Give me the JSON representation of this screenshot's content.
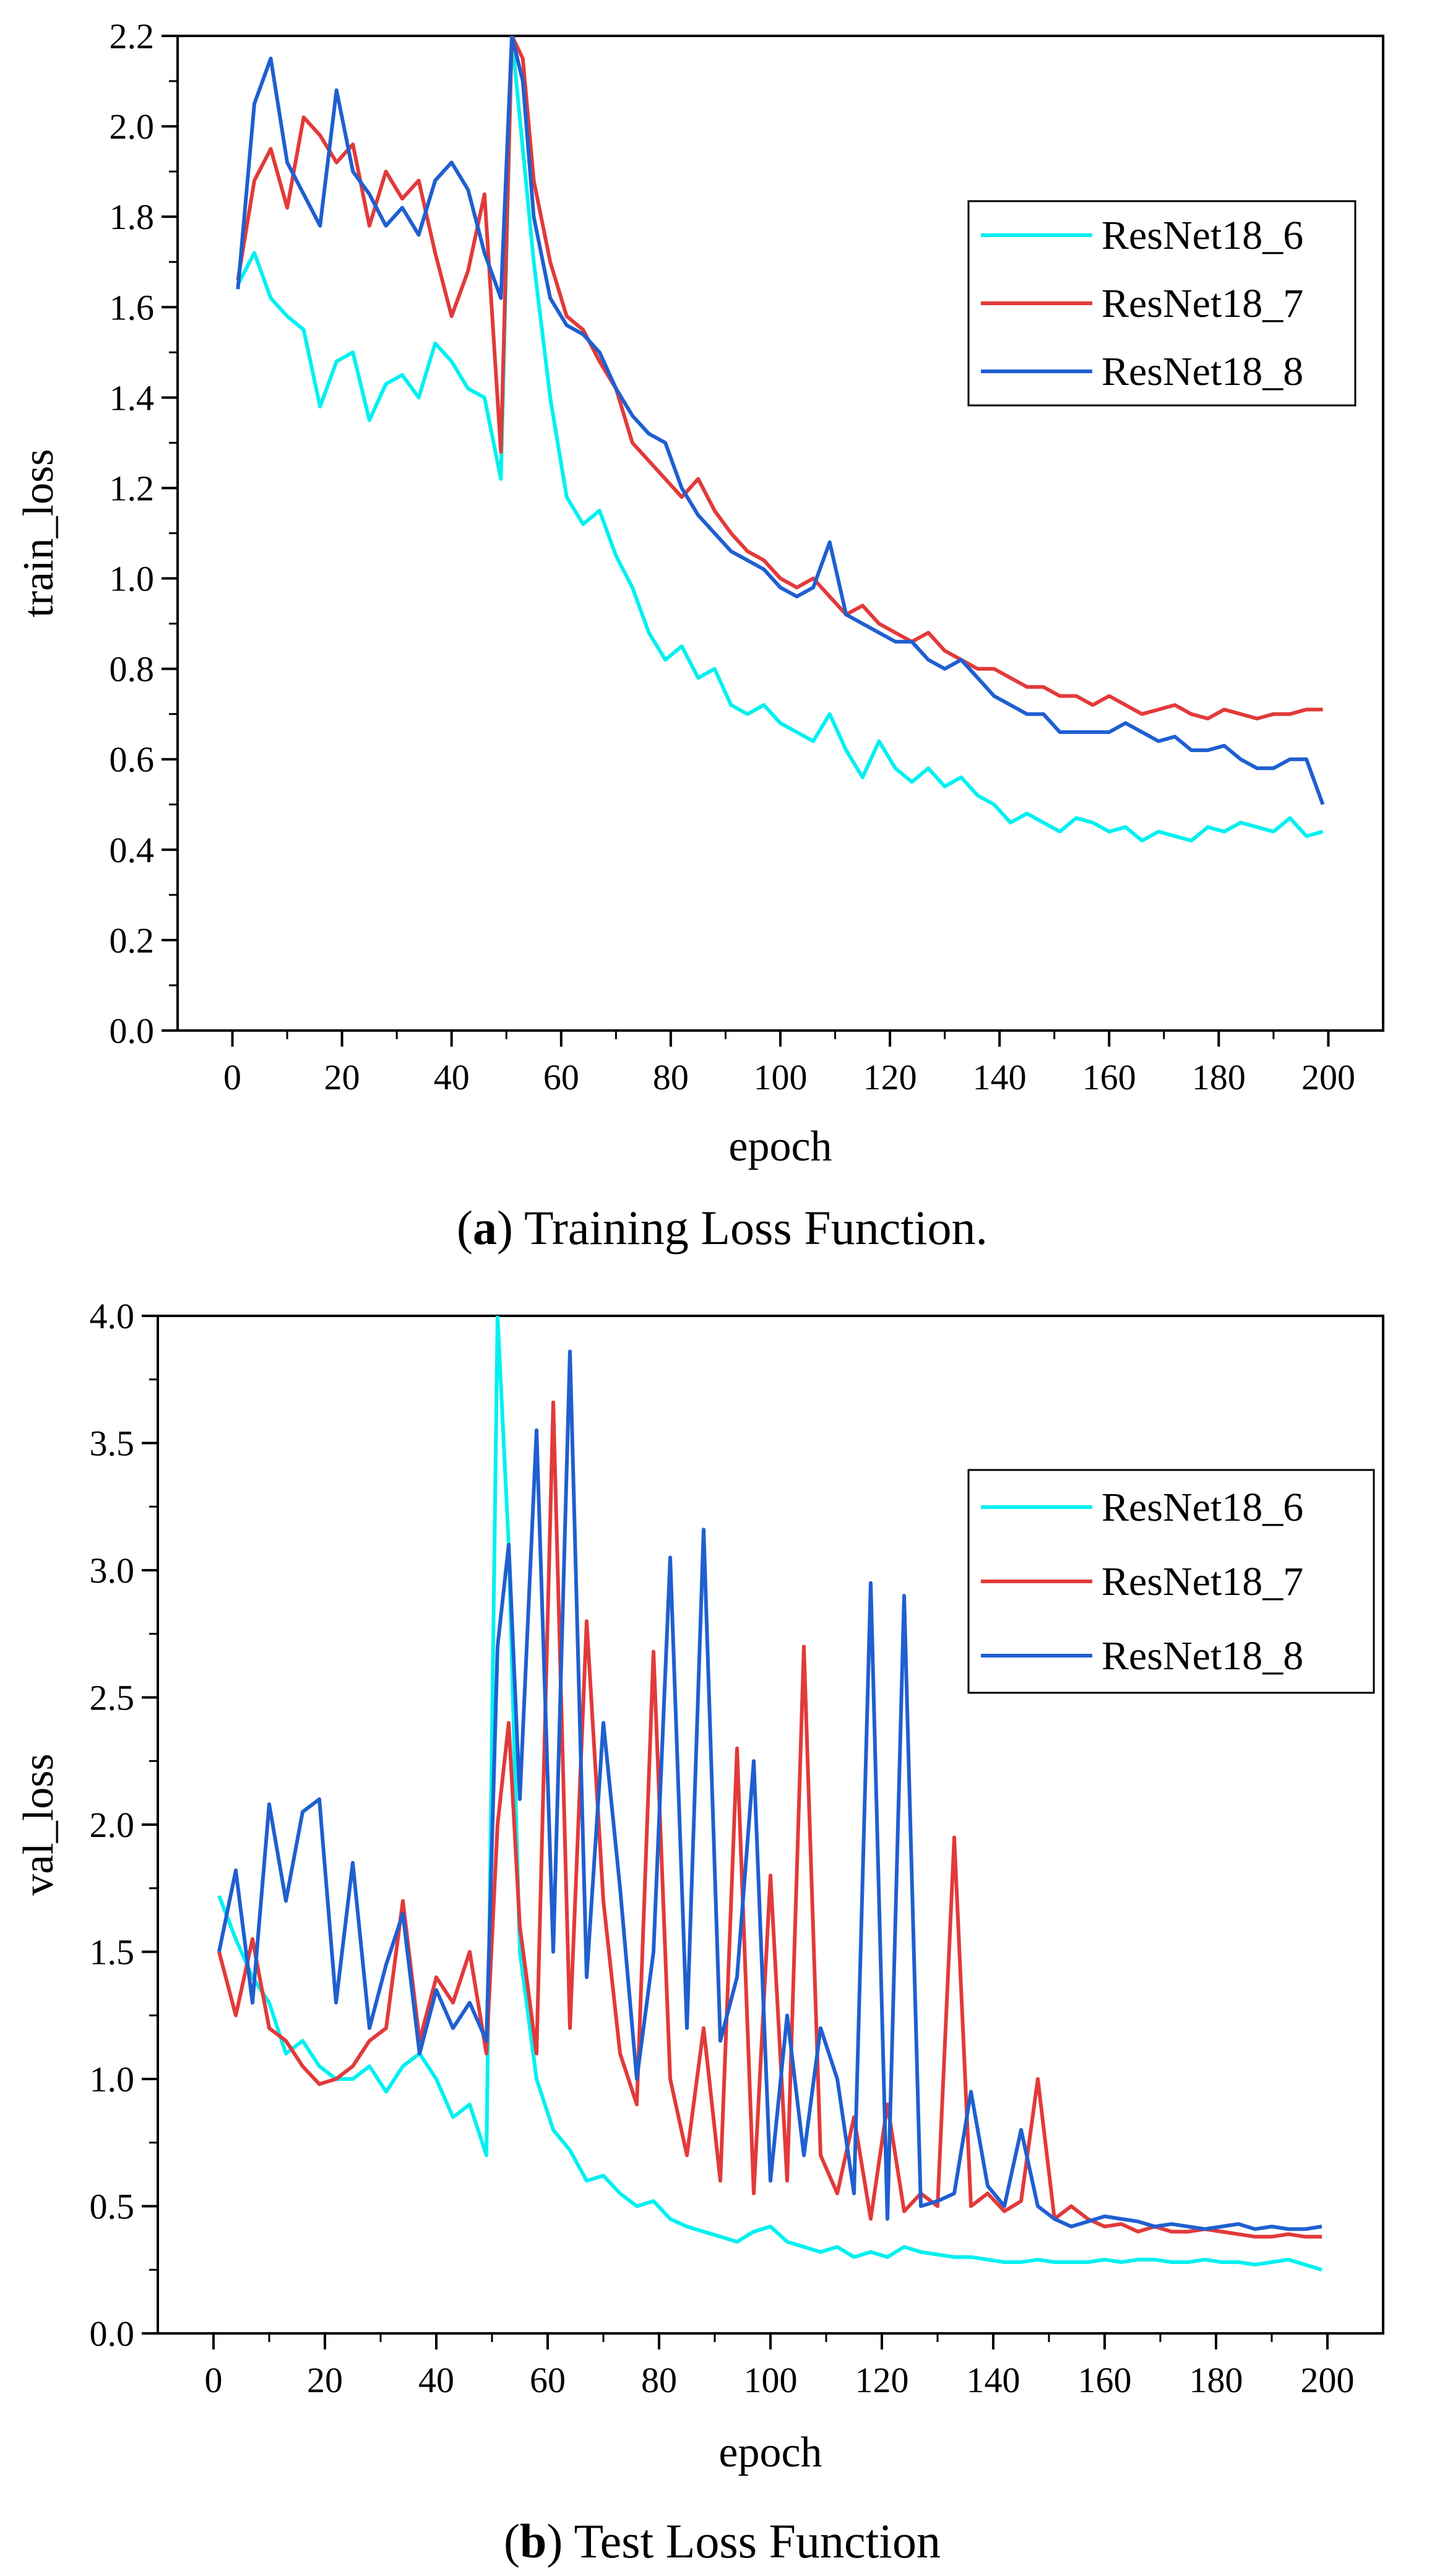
{
  "figure": {
    "panel_a_caption": {
      "open": "(",
      "letter": "a",
      "text": ") Training Loss Function."
    },
    "panel_b_caption": {
      "open": "(",
      "letter": "b",
      "text": ") Test Loss Function"
    }
  },
  "colors": {
    "ResNet18_6": "#00f0f0",
    "ResNet18_7": "#e23a3a",
    "ResNet18_8": "#1f5fd0"
  },
  "chart_data": [
    {
      "type": "line",
      "title": "",
      "xlabel": "epoch",
      "ylabel": "train_loss",
      "xlim": [
        -10,
        210
      ],
      "ylim": [
        0.0,
        2.2
      ],
      "xticks": [
        0,
        20,
        40,
        60,
        80,
        100,
        120,
        140,
        160,
        180,
        200
      ],
      "yticks": [
        0.0,
        0.2,
        0.4,
        0.6,
        0.8,
        1.0,
        1.2,
        1.4,
        1.6,
        1.8,
        2.0,
        2.2
      ],
      "ytick_labels": [
        "0.0",
        "0.2",
        "0.4",
        "0.6",
        "0.8",
        "1.0",
        "1.2",
        "1.4",
        "1.6",
        "1.8",
        "2.0",
        "2.2"
      ],
      "legend_position": "upper-right",
      "grid": false,
      "series": [
        {
          "name": "ResNet18_6",
          "x": [
            1,
            4,
            7,
            10,
            13,
            16,
            19,
            22,
            25,
            28,
            31,
            34,
            37,
            40,
            43,
            46,
            49,
            51,
            53,
            55,
            58,
            61,
            64,
            67,
            70,
            73,
            76,
            79,
            82,
            85,
            88,
            91,
            94,
            97,
            100,
            103,
            106,
            109,
            112,
            115,
            118,
            121,
            124,
            127,
            130,
            133,
            136,
            139,
            142,
            145,
            148,
            151,
            154,
            157,
            160,
            163,
            166,
            169,
            172,
            175,
            178,
            181,
            184,
            187,
            190,
            193,
            196,
            199
          ],
          "y": [
            1.65,
            1.72,
            1.62,
            1.58,
            1.55,
            1.38,
            1.48,
            1.5,
            1.35,
            1.43,
            1.45,
            1.4,
            1.52,
            1.48,
            1.42,
            1.4,
            1.22,
            2.2,
            1.95,
            1.7,
            1.4,
            1.18,
            1.12,
            1.15,
            1.05,
            0.98,
            0.88,
            0.82,
            0.85,
            0.78,
            0.8,
            0.72,
            0.7,
            0.72,
            0.68,
            0.66,
            0.64,
            0.7,
            0.62,
            0.56,
            0.64,
            0.58,
            0.55,
            0.58,
            0.54,
            0.56,
            0.52,
            0.5,
            0.46,
            0.48,
            0.46,
            0.44,
            0.47,
            0.46,
            0.44,
            0.45,
            0.42,
            0.44,
            0.43,
            0.42,
            0.45,
            0.44,
            0.46,
            0.45,
            0.44,
            0.47,
            0.43,
            0.44
          ]
        },
        {
          "name": "ResNet18_7",
          "x": [
            1,
            4,
            7,
            10,
            13,
            16,
            19,
            22,
            25,
            28,
            31,
            34,
            37,
            40,
            43,
            46,
            49,
            51,
            53,
            55,
            58,
            61,
            64,
            67,
            70,
            73,
            76,
            79,
            82,
            85,
            88,
            91,
            94,
            97,
            100,
            103,
            106,
            109,
            112,
            115,
            118,
            121,
            124,
            127,
            130,
            133,
            136,
            139,
            142,
            145,
            148,
            151,
            154,
            157,
            160,
            163,
            166,
            169,
            172,
            175,
            178,
            181,
            184,
            187,
            190,
            193,
            196,
            199
          ],
          "y": [
            1.66,
            1.88,
            1.95,
            1.82,
            2.02,
            1.98,
            1.92,
            1.96,
            1.78,
            1.9,
            1.84,
            1.88,
            1.72,
            1.58,
            1.68,
            1.85,
            1.28,
            2.2,
            2.15,
            1.88,
            1.7,
            1.58,
            1.55,
            1.48,
            1.42,
            1.3,
            1.26,
            1.22,
            1.18,
            1.22,
            1.15,
            1.1,
            1.06,
            1.04,
            1.0,
            0.98,
            1.0,
            0.96,
            0.92,
            0.94,
            0.9,
            0.88,
            0.86,
            0.88,
            0.84,
            0.82,
            0.8,
            0.8,
            0.78,
            0.76,
            0.76,
            0.74,
            0.74,
            0.72,
            0.74,
            0.72,
            0.7,
            0.71,
            0.72,
            0.7,
            0.69,
            0.71,
            0.7,
            0.69,
            0.7,
            0.7,
            0.71,
            0.71
          ]
        },
        {
          "name": "ResNet18_8",
          "x": [
            1,
            4,
            7,
            10,
            13,
            16,
            19,
            22,
            25,
            28,
            31,
            34,
            37,
            40,
            43,
            46,
            49,
            51,
            53,
            55,
            58,
            61,
            64,
            67,
            70,
            73,
            76,
            79,
            82,
            85,
            88,
            91,
            94,
            97,
            100,
            103,
            106,
            109,
            112,
            115,
            118,
            121,
            124,
            127,
            130,
            133,
            136,
            139,
            142,
            145,
            148,
            151,
            154,
            157,
            160,
            163,
            166,
            169,
            172,
            175,
            178,
            181,
            184,
            187,
            190,
            193,
            196,
            199
          ],
          "y": [
            1.64,
            2.05,
            2.15,
            1.92,
            1.85,
            1.78,
            2.08,
            1.9,
            1.85,
            1.78,
            1.82,
            1.76,
            1.88,
            1.92,
            1.86,
            1.72,
            1.62,
            2.2,
            2.1,
            1.8,
            1.62,
            1.56,
            1.54,
            1.5,
            1.42,
            1.36,
            1.32,
            1.3,
            1.2,
            1.14,
            1.1,
            1.06,
            1.04,
            1.02,
            0.98,
            0.96,
            0.98,
            1.08,
            0.92,
            0.9,
            0.88,
            0.86,
            0.86,
            0.82,
            0.8,
            0.82,
            0.78,
            0.74,
            0.72,
            0.7,
            0.7,
            0.66,
            0.66,
            0.66,
            0.66,
            0.68,
            0.66,
            0.64,
            0.65,
            0.62,
            0.62,
            0.63,
            0.6,
            0.58,
            0.58,
            0.6,
            0.6,
            0.5
          ]
        }
      ]
    },
    {
      "type": "line",
      "title": "",
      "xlabel": "epoch",
      "ylabel": "val_loss",
      "xlim": [
        -10,
        210
      ],
      "ylim": [
        0.0,
        4.0
      ],
      "xticks": [
        0,
        20,
        40,
        60,
        80,
        100,
        120,
        140,
        160,
        180,
        200
      ],
      "yticks": [
        0.0,
        0.5,
        1.0,
        1.5,
        2.0,
        2.5,
        3.0,
        3.5,
        4.0
      ],
      "ytick_labels": [
        "0.0",
        "0.5",
        "1.0",
        "1.5",
        "2.0",
        "2.5",
        "3.0",
        "3.5",
        "4.0"
      ],
      "legend_position": "upper-right",
      "grid": false,
      "series": [
        {
          "name": "ResNet18_6",
          "x": [
            1,
            4,
            7,
            10,
            13,
            16,
            19,
            22,
            25,
            28,
            31,
            34,
            37,
            40,
            43,
            46,
            49,
            51,
            53,
            55,
            58,
            61,
            64,
            67,
            70,
            73,
            76,
            79,
            82,
            85,
            88,
            91,
            94,
            97,
            100,
            103,
            106,
            109,
            112,
            115,
            118,
            121,
            124,
            127,
            130,
            133,
            136,
            139,
            142,
            145,
            148,
            151,
            154,
            157,
            160,
            163,
            166,
            169,
            172,
            175,
            178,
            181,
            184,
            187,
            190,
            193,
            196,
            199
          ],
          "y": [
            1.72,
            1.55,
            1.4,
            1.3,
            1.1,
            1.15,
            1.05,
            1.0,
            1.0,
            1.05,
            0.95,
            1.05,
            1.1,
            1.0,
            0.85,
            0.9,
            0.7,
            4.0,
            3.1,
            1.5,
            1.0,
            0.8,
            0.72,
            0.6,
            0.62,
            0.55,
            0.5,
            0.52,
            0.45,
            0.42,
            0.4,
            0.38,
            0.36,
            0.4,
            0.42,
            0.36,
            0.34,
            0.32,
            0.34,
            0.3,
            0.32,
            0.3,
            0.34,
            0.32,
            0.31,
            0.3,
            0.3,
            0.29,
            0.28,
            0.28,
            0.29,
            0.28,
            0.28,
            0.28,
            0.29,
            0.28,
            0.29,
            0.29,
            0.28,
            0.28,
            0.29,
            0.28,
            0.28,
            0.27,
            0.28,
            0.29,
            0.27,
            0.25
          ]
        },
        {
          "name": "ResNet18_7",
          "x": [
            1,
            4,
            7,
            10,
            13,
            16,
            19,
            22,
            25,
            28,
            31,
            34,
            37,
            40,
            43,
            46,
            49,
            51,
            53,
            55,
            58,
            61,
            64,
            67,
            70,
            73,
            76,
            79,
            82,
            85,
            88,
            91,
            94,
            97,
            100,
            103,
            106,
            109,
            112,
            115,
            118,
            121,
            124,
            127,
            130,
            133,
            136,
            139,
            142,
            145,
            148,
            151,
            154,
            157,
            160,
            163,
            166,
            169,
            172,
            175,
            178,
            181,
            184,
            187,
            190,
            193,
            196,
            199
          ],
          "y": [
            1.5,
            1.25,
            1.55,
            1.2,
            1.15,
            1.05,
            0.98,
            1.0,
            1.05,
            1.15,
            1.2,
            1.7,
            1.15,
            1.4,
            1.3,
            1.5,
            1.1,
            2.0,
            2.4,
            1.6,
            1.1,
            3.66,
            1.2,
            2.8,
            1.7,
            1.1,
            0.9,
            2.68,
            1.0,
            0.7,
            1.2,
            0.6,
            2.3,
            0.55,
            1.8,
            0.6,
            2.7,
            0.7,
            0.55,
            0.85,
            0.45,
            0.9,
            0.48,
            0.55,
            0.5,
            1.95,
            0.5,
            0.55,
            0.48,
            0.52,
            1.0,
            0.45,
            0.5,
            0.45,
            0.42,
            0.43,
            0.4,
            0.42,
            0.4,
            0.4,
            0.41,
            0.4,
            0.39,
            0.38,
            0.38,
            0.39,
            0.38,
            0.38
          ]
        },
        {
          "name": "ResNet18_8",
          "x": [
            1,
            4,
            7,
            10,
            13,
            16,
            19,
            22,
            25,
            28,
            31,
            34,
            37,
            40,
            43,
            46,
            49,
            51,
            53,
            55,
            58,
            61,
            64,
            67,
            70,
            73,
            76,
            79,
            82,
            85,
            88,
            91,
            94,
            97,
            100,
            103,
            106,
            109,
            112,
            115,
            118,
            121,
            124,
            127,
            130,
            133,
            136,
            139,
            142,
            145,
            148,
            151,
            154,
            157,
            160,
            163,
            166,
            169,
            172,
            175,
            178,
            181,
            184,
            187,
            190,
            193,
            196,
            199
          ],
          "y": [
            1.5,
            1.82,
            1.3,
            2.08,
            1.7,
            2.05,
            2.1,
            1.3,
            1.85,
            1.2,
            1.45,
            1.65,
            1.1,
            1.35,
            1.2,
            1.3,
            1.15,
            2.7,
            3.1,
            2.1,
            3.55,
            1.5,
            3.86,
            1.4,
            2.4,
            1.75,
            1.0,
            1.5,
            3.05,
            1.2,
            3.16,
            1.15,
            1.4,
            2.25,
            0.6,
            1.25,
            0.7,
            1.2,
            1.0,
            0.55,
            2.95,
            0.45,
            2.9,
            0.5,
            0.52,
            0.55,
            0.95,
            0.58,
            0.5,
            0.8,
            0.5,
            0.45,
            0.42,
            0.44,
            0.46,
            0.45,
            0.44,
            0.42,
            0.43,
            0.42,
            0.41,
            0.42,
            0.43,
            0.41,
            0.42,
            0.41,
            0.41,
            0.42
          ]
        }
      ]
    }
  ]
}
